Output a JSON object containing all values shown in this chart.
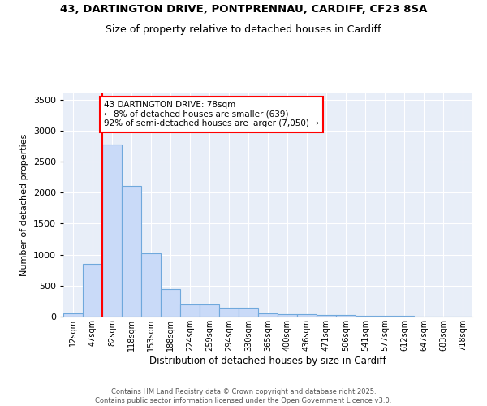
{
  "title_line1": "43, DARTINGTON DRIVE, PONTPRENNAU, CARDIFF, CF23 8SA",
  "title_line2": "Size of property relative to detached houses in Cardiff",
  "xlabel": "Distribution of detached houses by size in Cardiff",
  "ylabel": "Number of detached properties",
  "bar_labels": [
    "12sqm",
    "47sqm",
    "82sqm",
    "118sqm",
    "153sqm",
    "188sqm",
    "224sqm",
    "259sqm",
    "294sqm",
    "330sqm",
    "365sqm",
    "400sqm",
    "436sqm",
    "471sqm",
    "506sqm",
    "541sqm",
    "577sqm",
    "612sqm",
    "647sqm",
    "683sqm",
    "718sqm"
  ],
  "bar_values": [
    55,
    850,
    2780,
    2110,
    1020,
    450,
    200,
    200,
    140,
    140,
    55,
    40,
    40,
    25,
    20,
    15,
    12,
    8,
    5,
    5,
    3
  ],
  "bar_color": "#c9daf8",
  "bar_edge_color": "#6fa8dc",
  "vline_color": "red",
  "vline_x": 1.5,
  "annotation_title": "43 DARTINGTON DRIVE: 78sqm",
  "annotation_line2": "← 8% of detached houses are smaller (639)",
  "annotation_line3": "92% of semi-detached houses are larger (7,050) →",
  "annotation_box_color": "white",
  "annotation_box_edge": "red",
  "footer_line1": "Contains HM Land Registry data © Crown copyright and database right 2025.",
  "footer_line2": "Contains public sector information licensed under the Open Government Licence v3.0.",
  "ylim": [
    0,
    3600
  ],
  "background_color": "#e8eef8",
  "fig_width": 6.0,
  "fig_height": 5.0,
  "dpi": 100
}
